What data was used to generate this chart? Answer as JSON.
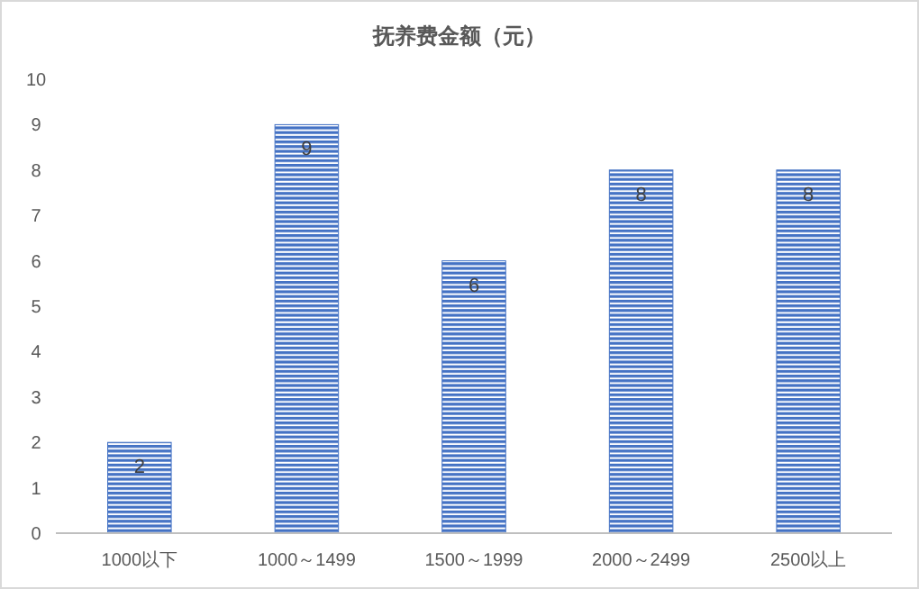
{
  "chart_data": {
    "type": "bar",
    "title": "抚养费金额（元）",
    "categories": [
      "1000以下",
      "1000～1499",
      "1500～1999",
      "2000～2499",
      "2500以上"
    ],
    "values": [
      2,
      9,
      6,
      8,
      8
    ],
    "color": "#4472c4",
    "ylim": [
      0,
      10
    ],
    "yticks": [
      0,
      1,
      2,
      3,
      4,
      5,
      6,
      7,
      8,
      9,
      10
    ],
    "grid": false,
    "data_labels": true
  }
}
